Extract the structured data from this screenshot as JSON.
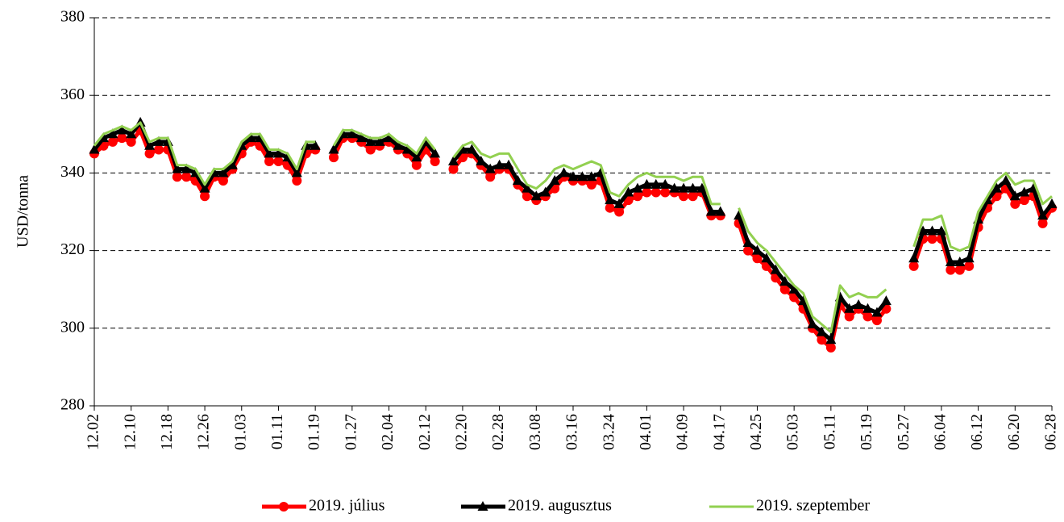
{
  "chart_data": {
    "type": "line",
    "y_label": "USD/tonna",
    "categories": [
      "12.02",
      null,
      null,
      null,
      "12.10",
      null,
      null,
      null,
      "12.18",
      null,
      null,
      null,
      "12.26",
      null,
      null,
      null,
      "01.03",
      null,
      null,
      null,
      "01.11",
      null,
      null,
      null,
      "01.19",
      null,
      null,
      null,
      "01.27",
      null,
      null,
      null,
      "02.04",
      null,
      null,
      null,
      "02.12",
      null,
      null,
      null,
      "02.20",
      null,
      null,
      null,
      "02.28",
      null,
      null,
      null,
      "03.08",
      null,
      null,
      null,
      "03.16",
      null,
      null,
      null,
      "03.24",
      null,
      null,
      null,
      "04.01",
      null,
      null,
      null,
      "04.09",
      null,
      null,
      null,
      "04.17",
      null,
      null,
      null,
      "04.25",
      null,
      null,
      null,
      "05.03",
      null,
      null,
      null,
      "05.11",
      null,
      null,
      null,
      "05.19",
      null,
      null,
      null,
      "05.27",
      null,
      null,
      null,
      "06.04",
      null,
      null,
      null,
      "06.12",
      null,
      null,
      null,
      "06.20",
      null,
      null,
      null,
      "06.28"
    ],
    "series": [
      {
        "name": "2019. július",
        "color": "#ff0000",
        "marker": "circle",
        "values": [
          345,
          347,
          348,
          349,
          348,
          351,
          345,
          346,
          346,
          339,
          339,
          338,
          334,
          339,
          338,
          341,
          345,
          348,
          347,
          343,
          343,
          342,
          338,
          345,
          346,
          null,
          344,
          349,
          349,
          348,
          346,
          347,
          348,
          346,
          345,
          342,
          346,
          343,
          null,
          341,
          344,
          345,
          342,
          339,
          341,
          341,
          337,
          334,
          333,
          334,
          336,
          339,
          338,
          338,
          337,
          338,
          331,
          330,
          333,
          334,
          335,
          335,
          335,
          335,
          334,
          334,
          335,
          329,
          329,
          null,
          327,
          320,
          318,
          316,
          313,
          310,
          308,
          305,
          300,
          297,
          295,
          306,
          303,
          305,
          303,
          302,
          305,
          null,
          null,
          316,
          323,
          323,
          323,
          315,
          315,
          316,
          326,
          331,
          334,
          336,
          332,
          333,
          334,
          327,
          331
        ]
      },
      {
        "name": "2019. augusztus",
        "color": "#000000",
        "marker": "triangle",
        "values": [
          346,
          349,
          350,
          351,
          350,
          353,
          347,
          348,
          348,
          341,
          341,
          340,
          336,
          340,
          340,
          342,
          347,
          349,
          349,
          345,
          345,
          344,
          340,
          347,
          347,
          null,
          346,
          350,
          350,
          349,
          348,
          348,
          349,
          347,
          346,
          344,
          348,
          345,
          null,
          343,
          346,
          346,
          343,
          341,
          342,
          342,
          338,
          336,
          334,
          335,
          338,
          340,
          339,
          339,
          339,
          340,
          333,
          332,
          335,
          336,
          337,
          337,
          337,
          336,
          336,
          336,
          336,
          330,
          330,
          null,
          329,
          322,
          320,
          318,
          315,
          312,
          310,
          307,
          301,
          299,
          297,
          308,
          305,
          306,
          305,
          304,
          307,
          null,
          null,
          318,
          325,
          325,
          325,
          317,
          317,
          318,
          328,
          333,
          336,
          338,
          334,
          335,
          336,
          329,
          332
        ]
      },
      {
        "name": "2019. szeptember",
        "color": "#92d050",
        "marker": "none",
        "values": [
          347,
          350,
          351,
          352,
          351,
          353,
          348,
          349,
          349,
          342,
          342,
          341,
          337,
          341,
          341,
          343,
          348,
          350,
          350,
          346,
          346,
          345,
          341,
          348,
          348,
          null,
          347,
          351,
          351,
          350,
          349,
          349,
          350,
          348,
          347,
          345,
          349,
          346,
          null,
          344,
          347,
          348,
          345,
          344,
          345,
          345,
          341,
          337,
          336,
          338,
          341,
          342,
          341,
          342,
          343,
          342,
          335,
          334,
          337,
          339,
          340,
          339,
          339,
          339,
          338,
          339,
          339,
          332,
          332,
          null,
          331,
          325,
          322,
          320,
          317,
          314,
          311,
          309,
          303,
          301,
          299,
          311,
          308,
          309,
          308,
          308,
          310,
          null,
          null,
          321,
          328,
          328,
          329,
          321,
          320,
          321,
          330,
          334,
          338,
          340,
          337,
          338,
          338,
          332,
          334
        ]
      }
    ],
    "ylim": [
      280,
      380
    ],
    "yticks": [
      280,
      300,
      320,
      340,
      360,
      380
    ],
    "grid": true,
    "legend": "bottom"
  }
}
